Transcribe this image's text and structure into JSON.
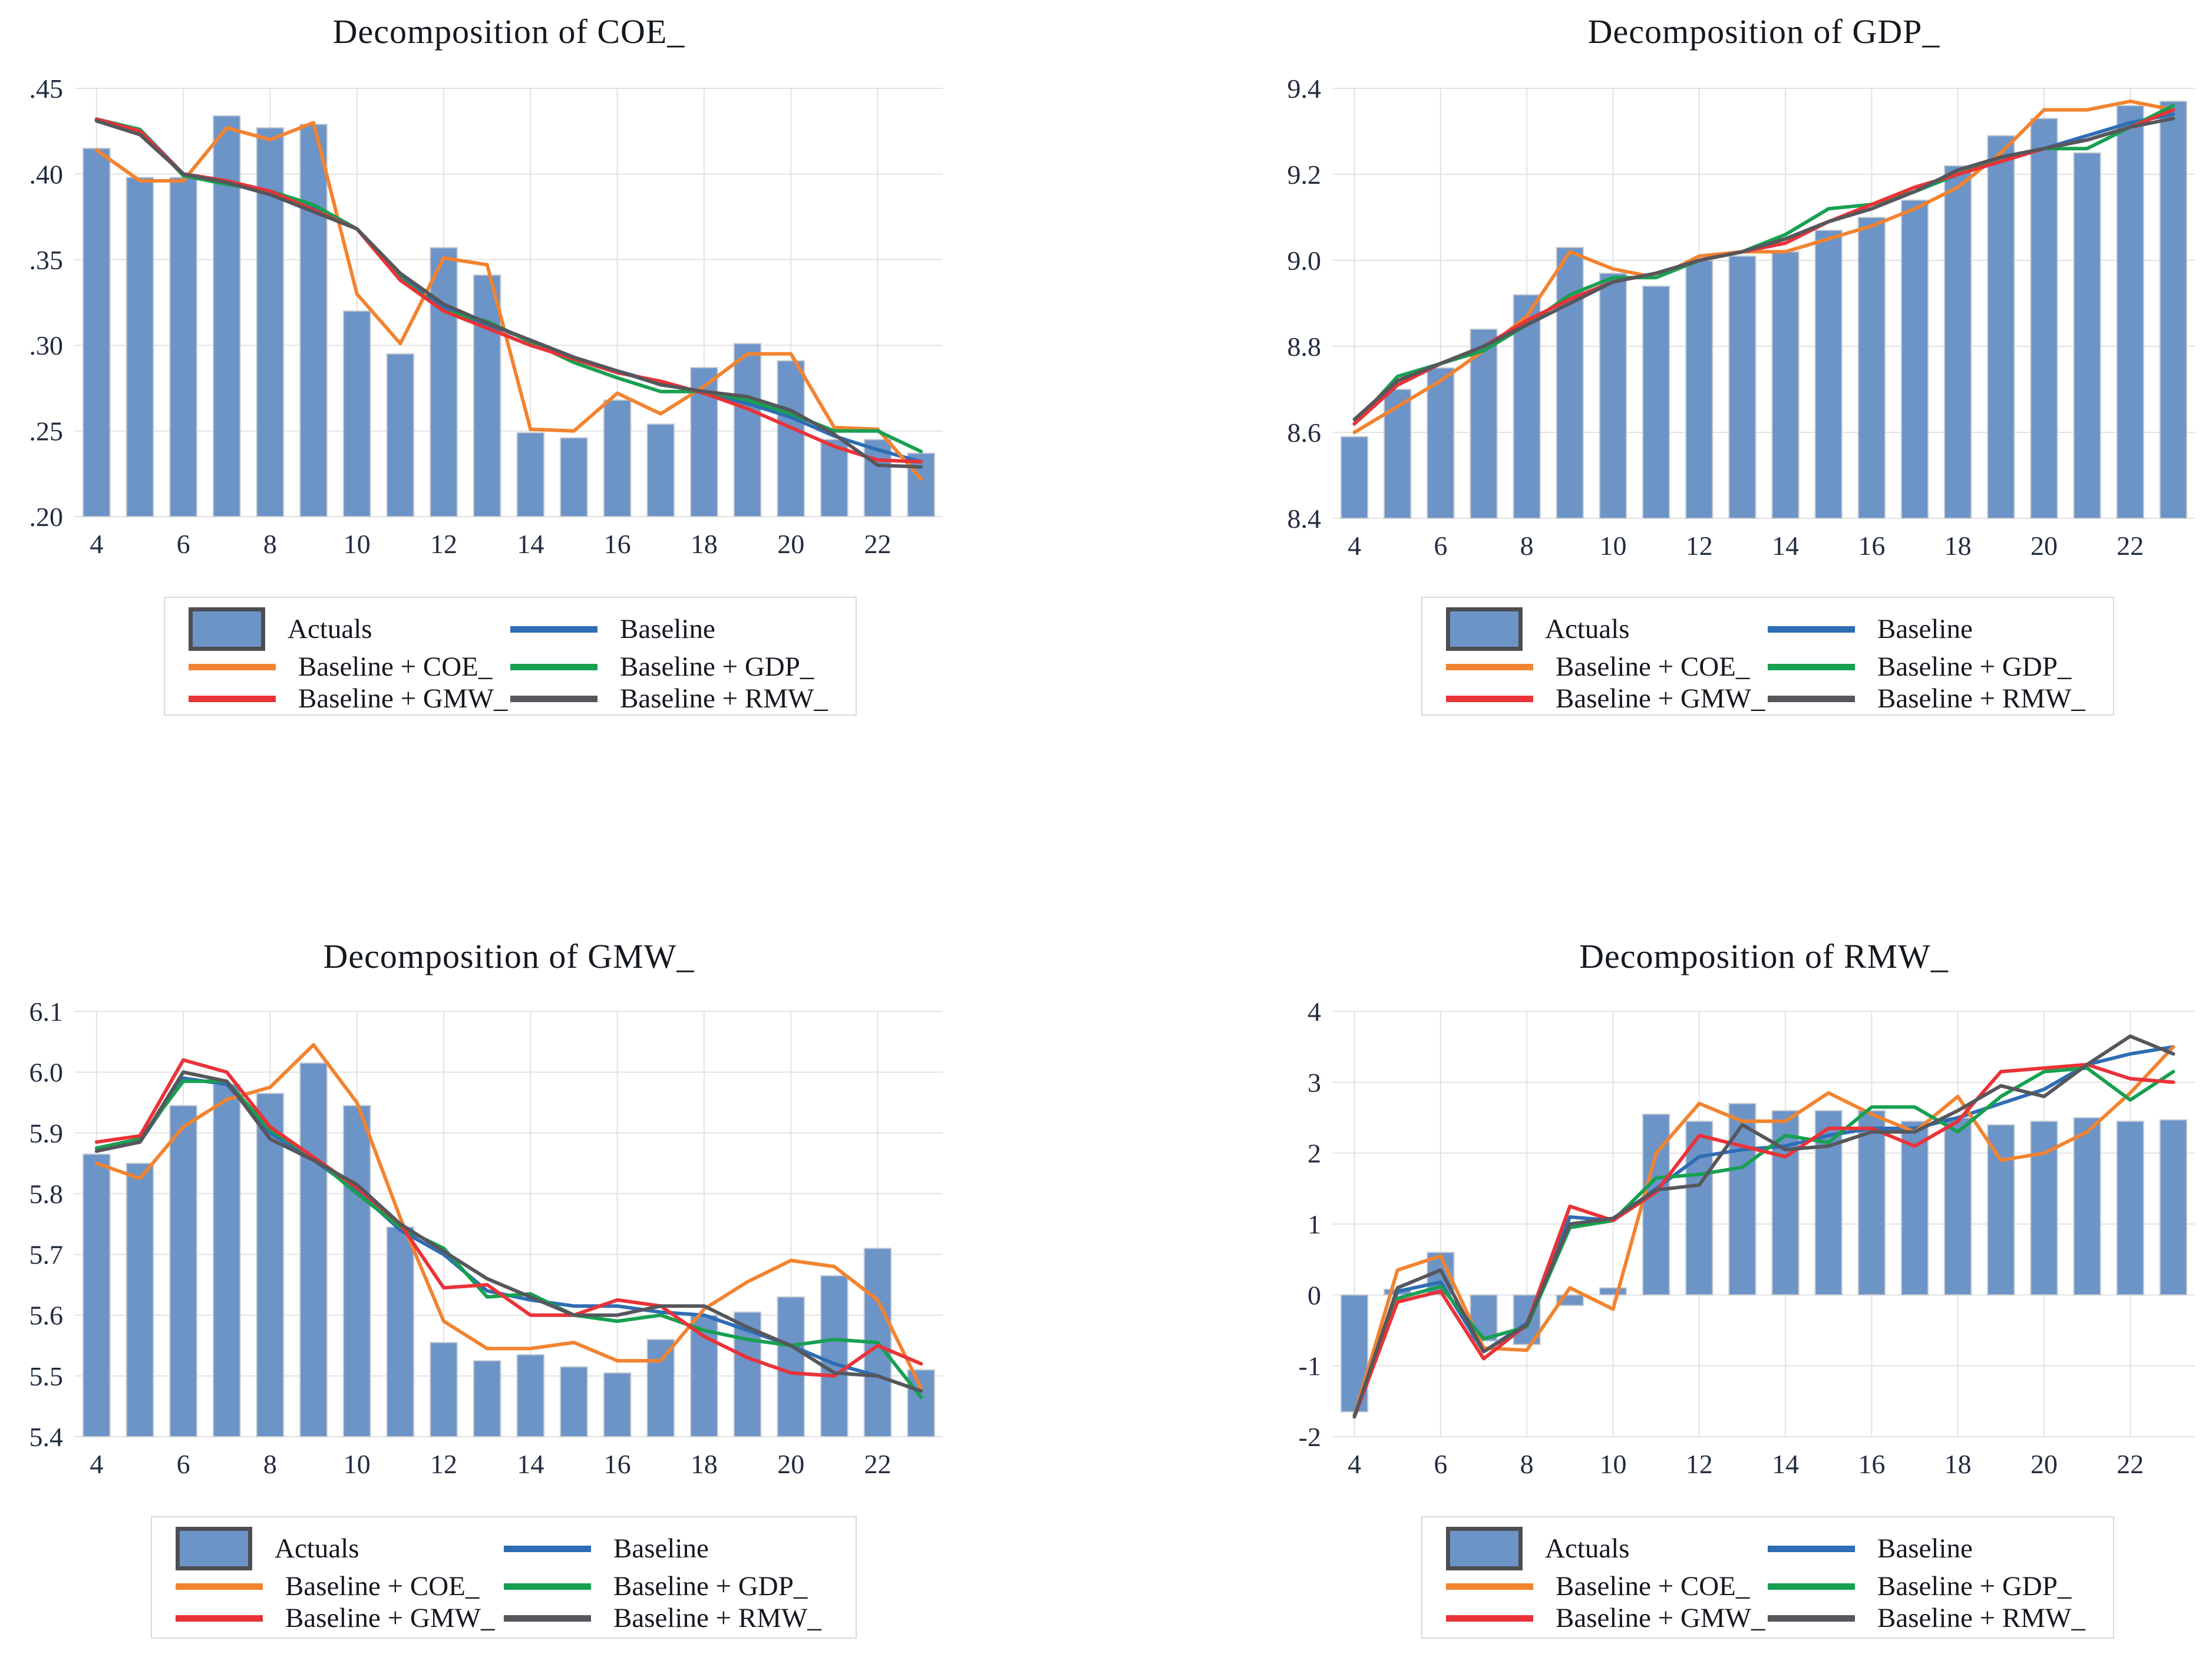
{
  "page": {
    "background": "#ffffff"
  },
  "colors": {
    "actuals_bar": "#6D94C7",
    "bar_border": "#c9cdd4",
    "baseline": "#2E6DB4",
    "coe": "#F28330",
    "gdp": "#17A051",
    "gmw": "#E93338",
    "rmw": "#56575C",
    "gridline": "#e2e2e2",
    "tick_text": "#222c3f",
    "legend_border": "#d9d9d9"
  },
  "chart_data": [
    {
      "key": "coe",
      "type": "bar",
      "title": "Decomposition of COE_",
      "x": [
        4,
        5,
        6,
        7,
        8,
        9,
        10,
        11,
        12,
        13,
        14,
        15,
        16,
        17,
        18,
        19,
        20,
        21,
        22,
        23
      ],
      "xticks": [
        {
          "v": 4,
          "label": "4"
        },
        {
          "v": 6,
          "label": "6"
        },
        {
          "v": 8,
          "label": "8"
        },
        {
          "v": 10,
          "label": "10"
        },
        {
          "v": 12,
          "label": "12"
        },
        {
          "v": 14,
          "label": "14"
        },
        {
          "v": 16,
          "label": "16"
        },
        {
          "v": 18,
          "label": "18"
        },
        {
          "v": 20,
          "label": "20"
        },
        {
          "v": 22,
          "label": "22"
        }
      ],
      "ylim": [
        0.2,
        0.45
      ],
      "yticks": [
        {
          "v": 0.45,
          "label": ".45"
        },
        {
          "v": 0.4,
          "label": ".40"
        },
        {
          "v": 0.35,
          "label": ".35"
        },
        {
          "v": 0.3,
          "label": ".30"
        },
        {
          "v": 0.25,
          "label": ".25"
        },
        {
          "v": 0.2,
          "label": ".20"
        }
      ],
      "bar_base": 0.2,
      "series": [
        {
          "name": "Actuals",
          "type": "bar",
          "color": "#6D94C7",
          "values": [
            0.415,
            0.398,
            0.398,
            0.434,
            0.427,
            0.429,
            0.32,
            0.295,
            0.357,
            0.341,
            0.249,
            0.246,
            0.268,
            0.254,
            0.287,
            0.301,
            0.291,
            0.245,
            0.245,
            0.237
          ]
        },
        {
          "name": "Baseline",
          "type": "line",
          "color": "#2E6DB4",
          "values": [
            0.432,
            0.426,
            0.4,
            0.396,
            0.389,
            0.38,
            0.368,
            0.341,
            0.322,
            0.312,
            0.303,
            0.293,
            0.285,
            0.278,
            0.272,
            0.266,
            0.258,
            0.247,
            0.239,
            0.232
          ]
        },
        {
          "name": "Baseline + COE_",
          "type": "line",
          "color": "#F28330",
          "values": [
            0.414,
            0.396,
            0.396,
            0.427,
            0.42,
            0.43,
            0.33,
            0.301,
            0.351,
            0.347,
            0.251,
            0.25,
            0.272,
            0.26,
            0.276,
            0.295,
            0.295,
            0.252,
            0.251,
            0.222
          ]
        },
        {
          "name": "Baseline + GDP_",
          "type": "line",
          "color": "#17A051",
          "values": [
            0.432,
            0.426,
            0.399,
            0.394,
            0.39,
            0.382,
            0.368,
            0.339,
            0.32,
            0.314,
            0.302,
            0.29,
            0.281,
            0.273,
            0.273,
            0.268,
            0.26,
            0.25,
            0.25,
            0.238
          ]
        },
        {
          "name": "Baseline + GMW_",
          "type": "line",
          "color": "#E93338",
          "values": [
            0.432,
            0.425,
            0.4,
            0.396,
            0.39,
            0.379,
            0.368,
            0.338,
            0.32,
            0.31,
            0.3,
            0.292,
            0.284,
            0.279,
            0.272,
            0.263,
            0.252,
            0.241,
            0.233,
            0.232
          ]
        },
        {
          "name": "Baseline + RMW_",
          "type": "line",
          "color": "#56575C",
          "values": [
            0.431,
            0.423,
            0.4,
            0.395,
            0.388,
            0.378,
            0.368,
            0.342,
            0.324,
            0.313,
            0.303,
            0.293,
            0.285,
            0.277,
            0.273,
            0.27,
            0.262,
            0.248,
            0.23,
            0.229
          ]
        }
      ]
    },
    {
      "key": "gdp",
      "type": "bar",
      "title": "Decomposition of GDP_",
      "x": [
        4,
        5,
        6,
        7,
        8,
        9,
        10,
        11,
        12,
        13,
        14,
        15,
        16,
        17,
        18,
        19,
        20,
        21,
        22,
        23
      ],
      "xticks": [
        {
          "v": 4,
          "label": "4"
        },
        {
          "v": 6,
          "label": "6"
        },
        {
          "v": 8,
          "label": "8"
        },
        {
          "v": 10,
          "label": "10"
        },
        {
          "v": 12,
          "label": "12"
        },
        {
          "v": 14,
          "label": "14"
        },
        {
          "v": 16,
          "label": "16"
        },
        {
          "v": 18,
          "label": "18"
        },
        {
          "v": 20,
          "label": "20"
        },
        {
          "v": 22,
          "label": "22"
        }
      ],
      "ylim": [
        8.4,
        9.4
      ],
      "yticks": [
        {
          "v": 9.4,
          "label": "9.4"
        },
        {
          "v": 9.2,
          "label": "9.2"
        },
        {
          "v": 9.0,
          "label": "9.0"
        },
        {
          "v": 8.8,
          "label": "8.8"
        },
        {
          "v": 8.6,
          "label": "8.6"
        },
        {
          "v": 8.4,
          "label": "8.4"
        }
      ],
      "bar_base": 8.4,
      "series": [
        {
          "name": "Actuals",
          "type": "bar",
          "color": "#6D94C7",
          "values": [
            8.59,
            8.7,
            8.75,
            8.84,
            8.92,
            9.03,
            8.97,
            8.94,
            9.0,
            9.01,
            9.02,
            9.07,
            9.1,
            9.14,
            9.22,
            9.29,
            9.33,
            9.25,
            9.36,
            9.37
          ]
        },
        {
          "name": "Baseline",
          "type": "line",
          "color": "#2E6DB4",
          "values": [
            8.62,
            8.71,
            8.76,
            8.8,
            8.85,
            8.9,
            8.95,
            8.97,
            9.0,
            9.02,
            9.05,
            9.09,
            9.12,
            9.16,
            9.2,
            9.23,
            9.26,
            9.29,
            9.32,
            9.34
          ]
        },
        {
          "name": "Baseline + COE_",
          "type": "line",
          "color": "#F28330",
          "values": [
            8.6,
            8.66,
            8.72,
            8.79,
            8.87,
            9.02,
            8.98,
            8.96,
            9.01,
            9.02,
            9.02,
            9.05,
            9.08,
            9.12,
            9.17,
            9.25,
            9.35,
            9.35,
            9.37,
            9.35
          ]
        },
        {
          "name": "Baseline + GDP_",
          "type": "line",
          "color": "#17A051",
          "values": [
            8.62,
            8.73,
            8.76,
            8.79,
            8.85,
            8.92,
            8.96,
            8.96,
            9.0,
            9.02,
            9.06,
            9.12,
            9.13,
            9.16,
            9.2,
            9.24,
            9.26,
            9.26,
            9.31,
            9.36
          ]
        },
        {
          "name": "Baseline + GMW_",
          "type": "line",
          "color": "#E93338",
          "values": [
            8.62,
            8.71,
            8.76,
            8.8,
            8.86,
            8.91,
            8.95,
            8.97,
            9.0,
            9.02,
            9.04,
            9.09,
            9.13,
            9.17,
            9.2,
            9.23,
            9.26,
            9.28,
            9.31,
            9.35
          ]
        },
        {
          "name": "Baseline + RMW_",
          "type": "line",
          "color": "#56575C",
          "values": [
            8.63,
            8.72,
            8.76,
            8.8,
            8.85,
            8.9,
            8.95,
            8.97,
            9.0,
            9.02,
            9.05,
            9.09,
            9.12,
            9.16,
            9.21,
            9.24,
            9.26,
            9.28,
            9.31,
            9.33
          ]
        }
      ]
    },
    {
      "key": "gmw",
      "type": "bar",
      "title": "Decomposition of GMW_",
      "x": [
        4,
        5,
        6,
        7,
        8,
        9,
        10,
        11,
        12,
        13,
        14,
        15,
        16,
        17,
        18,
        19,
        20,
        21,
        22,
        23
      ],
      "xticks": [
        {
          "v": 4,
          "label": "4"
        },
        {
          "v": 6,
          "label": "6"
        },
        {
          "v": 8,
          "label": "8"
        },
        {
          "v": 10,
          "label": "10"
        },
        {
          "v": 12,
          "label": "12"
        },
        {
          "v": 14,
          "label": "14"
        },
        {
          "v": 16,
          "label": "16"
        },
        {
          "v": 18,
          "label": "18"
        },
        {
          "v": 20,
          "label": "20"
        },
        {
          "v": 22,
          "label": "22"
        }
      ],
      "ylim": [
        5.4,
        6.1
      ],
      "yticks": [
        {
          "v": 6.1,
          "label": "6.1"
        },
        {
          "v": 6.0,
          "label": "6.0"
        },
        {
          "v": 5.9,
          "label": "5.9"
        },
        {
          "v": 5.8,
          "label": "5.8"
        },
        {
          "v": 5.7,
          "label": "5.7"
        },
        {
          "v": 5.6,
          "label": "5.6"
        },
        {
          "v": 5.5,
          "label": "5.5"
        },
        {
          "v": 5.4,
          "label": "5.4"
        }
      ],
      "bar_base": 5.4,
      "series": [
        {
          "name": "Actuals",
          "type": "bar",
          "color": "#6D94C7",
          "values": [
            5.865,
            5.85,
            5.945,
            5.98,
            5.965,
            6.015,
            5.945,
            5.745,
            5.555,
            5.525,
            5.535,
            5.515,
            5.505,
            5.56,
            5.6,
            5.605,
            5.63,
            5.665,
            5.71,
            5.51
          ]
        },
        {
          "name": "Baseline",
          "type": "line",
          "color": "#2E6DB4",
          "values": [
            5.87,
            5.885,
            5.99,
            5.98,
            5.9,
            5.855,
            5.805,
            5.74,
            5.7,
            5.64,
            5.625,
            5.615,
            5.615,
            5.605,
            5.6,
            5.575,
            5.55,
            5.52,
            5.5,
            5.475
          ]
        },
        {
          "name": "Baseline + COE_",
          "type": "line",
          "color": "#F28330",
          "values": [
            5.85,
            5.825,
            5.91,
            5.955,
            5.975,
            6.045,
            5.95,
            5.76,
            5.59,
            5.545,
            5.545,
            5.555,
            5.525,
            5.525,
            5.61,
            5.655,
            5.69,
            5.68,
            5.625,
            5.48
          ]
        },
        {
          "name": "Baseline + GDP_",
          "type": "line",
          "color": "#17A051",
          "values": [
            5.875,
            5.89,
            5.985,
            5.985,
            5.905,
            5.86,
            5.8,
            5.745,
            5.71,
            5.63,
            5.635,
            5.6,
            5.59,
            5.6,
            5.575,
            5.56,
            5.55,
            5.56,
            5.555,
            5.465
          ]
        },
        {
          "name": "Baseline + GMW_",
          "type": "line",
          "color": "#E93338",
          "values": [
            5.885,
            5.895,
            6.02,
            6.0,
            5.91,
            5.86,
            5.81,
            5.75,
            5.645,
            5.65,
            5.6,
            5.6,
            5.625,
            5.615,
            5.565,
            5.53,
            5.505,
            5.5,
            5.55,
            5.52
          ]
        },
        {
          "name": "Baseline + RMW_",
          "type": "line",
          "color": "#56575C",
          "values": [
            5.87,
            5.885,
            6.0,
            5.985,
            5.89,
            5.855,
            5.815,
            5.75,
            5.705,
            5.66,
            5.63,
            5.6,
            5.6,
            5.615,
            5.615,
            5.58,
            5.55,
            5.505,
            5.5,
            5.475
          ]
        }
      ]
    },
    {
      "key": "rmw",
      "type": "bar",
      "title": "Decomposition of RMW_",
      "x": [
        4,
        5,
        6,
        7,
        8,
        9,
        10,
        11,
        12,
        13,
        14,
        15,
        16,
        17,
        18,
        19,
        20,
        21,
        22,
        23
      ],
      "xticks": [
        {
          "v": 4,
          "label": "4"
        },
        {
          "v": 6,
          "label": "6"
        },
        {
          "v": 8,
          "label": "8"
        },
        {
          "v": 10,
          "label": "10"
        },
        {
          "v": 12,
          "label": "12"
        },
        {
          "v": 14,
          "label": "14"
        },
        {
          "v": 16,
          "label": "16"
        },
        {
          "v": 18,
          "label": "18"
        },
        {
          "v": 20,
          "label": "20"
        },
        {
          "v": 22,
          "label": "22"
        }
      ],
      "ylim": [
        -2,
        4
      ],
      "yticks": [
        {
          "v": 4,
          "label": "4"
        },
        {
          "v": 3,
          "label": "3"
        },
        {
          "v": 2,
          "label": "2"
        },
        {
          "v": 1,
          "label": "1"
        },
        {
          "v": 0,
          "label": "0"
        },
        {
          "v": -1,
          "label": "-1"
        },
        {
          "v": -2,
          "label": "-2"
        }
      ],
      "bar_base": 0,
      "series": [
        {
          "name": "Actuals",
          "type": "bar",
          "color": "#6D94C7",
          "values": [
            -1.65,
            0.08,
            0.6,
            -0.65,
            -0.7,
            -0.15,
            0.1,
            2.55,
            2.45,
            2.7,
            2.6,
            2.6,
            2.6,
            2.45,
            2.5,
            2.4,
            2.45,
            2.5,
            2.45,
            2.47
          ]
        },
        {
          "name": "Baseline",
          "type": "line",
          "color": "#2E6DB4",
          "values": [
            -1.7,
            0.05,
            0.18,
            -0.8,
            -0.4,
            1.1,
            1.05,
            1.5,
            1.95,
            2.05,
            2.1,
            2.25,
            2.35,
            2.35,
            2.5,
            2.7,
            2.9,
            3.25,
            3.4,
            3.5
          ]
        },
        {
          "name": "Baseline + COE_",
          "type": "line",
          "color": "#F28330",
          "values": [
            -1.7,
            0.35,
            0.55,
            -0.75,
            -0.78,
            0.1,
            -0.2,
            2.0,
            2.7,
            2.45,
            2.45,
            2.85,
            2.55,
            2.3,
            2.8,
            1.9,
            2.0,
            2.3,
            2.85,
            3.5
          ]
        },
        {
          "name": "Baseline + GDP_",
          "type": "line",
          "color": "#17A051",
          "values": [
            -1.7,
            -0.05,
            0.12,
            -0.62,
            -0.45,
            0.95,
            1.05,
            1.65,
            1.7,
            1.8,
            2.25,
            2.15,
            2.65,
            2.65,
            2.3,
            2.8,
            3.15,
            3.2,
            2.75,
            3.15
          ]
        },
        {
          "name": "Baseline + GMW_",
          "type": "line",
          "color": "#E93338",
          "values": [
            -1.72,
            -0.1,
            0.05,
            -0.9,
            -0.42,
            1.25,
            1.05,
            1.45,
            2.25,
            2.1,
            1.95,
            2.35,
            2.35,
            2.1,
            2.45,
            3.15,
            3.2,
            3.25,
            3.05,
            3.0
          ]
        },
        {
          "name": "Baseline + RMW_",
          "type": "line",
          "color": "#56575C",
          "values": [
            -1.72,
            0.1,
            0.35,
            -0.8,
            -0.42,
            1.0,
            1.08,
            1.48,
            1.55,
            2.4,
            2.05,
            2.1,
            2.3,
            2.3,
            2.6,
            2.95,
            2.8,
            3.25,
            3.65,
            3.4
          ]
        }
      ]
    }
  ]
}
